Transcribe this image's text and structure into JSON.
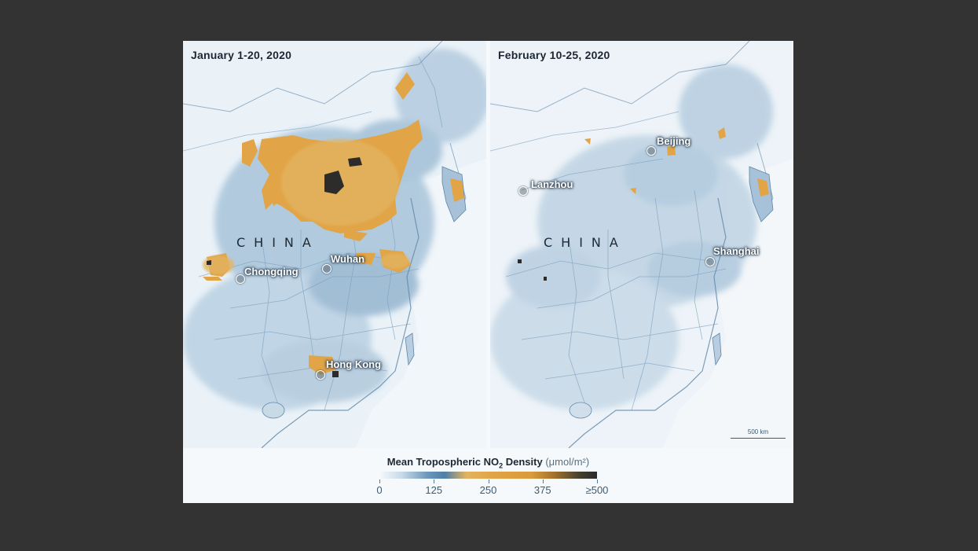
{
  "figure": {
    "left_panel": {
      "date_label": "January 1-20, 2020",
      "country_label": "CHINA",
      "cities": [
        "Chongqing",
        "Wuhan",
        "Hong Kong"
      ]
    },
    "right_panel": {
      "date_label": "February 10-25, 2020",
      "country_label": "CHINA",
      "cities": [
        "Beijing",
        "Lanzhou",
        "Shanghai"
      ],
      "scale_bar_label": "500 km"
    },
    "legend": {
      "title_main": "Mean Tropospheric NO",
      "title_sub": "2",
      "title_after": " Density",
      "unit": "(μmol/m²)",
      "ticks": [
        "0",
        "125",
        "250",
        "375",
        "≥500"
      ]
    },
    "colors": {
      "low": "#f6f9fb",
      "mid_blue": "#4f7ea8",
      "high_orange": "#e1a447",
      "max_dark": "#2a2b2e",
      "water": "#eef4f8",
      "background": "#333333"
    }
  }
}
